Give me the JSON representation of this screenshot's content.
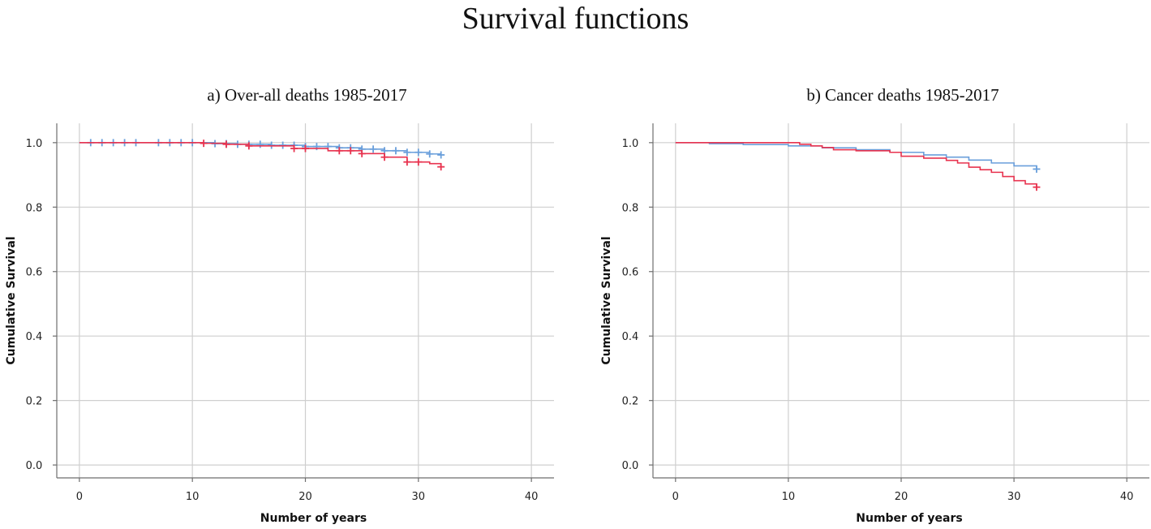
{
  "figure_title": "Survival functions",
  "colors": {
    "series_1": "#6a9fdb",
    "series_2": "#e8334f",
    "grid": "#cfcfcf"
  },
  "chart_data": [
    {
      "type": "line",
      "subtype": "kaplan-meier step",
      "title": "a) Over-all deaths 1985-2017",
      "xlabel": "Number of years",
      "ylabel": "Cumulative Survival",
      "xlim": [
        -2,
        42
      ],
      "ylim": [
        -0.04,
        1.06
      ],
      "xticks": [
        0,
        10,
        20,
        30,
        40
      ],
      "yticks": [
        0.0,
        0.2,
        0.4,
        0.6,
        0.8,
        1.0
      ],
      "grid": true,
      "series": [
        {
          "color": "#6a9fdb",
          "points": [
            [
              0,
              1.0
            ],
            [
              10,
              1.0
            ],
            [
              12,
              0.997
            ],
            [
              14,
              0.995
            ],
            [
              17,
              0.992
            ],
            [
              20,
              0.988
            ],
            [
              23,
              0.984
            ],
            [
              25,
              0.98
            ],
            [
              27,
              0.975
            ],
            [
              29,
              0.97
            ],
            [
              31,
              0.965
            ],
            [
              32,
              0.962
            ]
          ],
          "censored": [
            1,
            2,
            3,
            4,
            5,
            7,
            8,
            9,
            10,
            12,
            13,
            14,
            15,
            16,
            17,
            18,
            19,
            20,
            21,
            22,
            23,
            24,
            25,
            26,
            27,
            28,
            29,
            30,
            31,
            32
          ]
        },
        {
          "color": "#e8334f",
          "points": [
            [
              0,
              1.0
            ],
            [
              11,
              0.998
            ],
            [
              13,
              0.995
            ],
            [
              15,
              0.99
            ],
            [
              19,
              0.982
            ],
            [
              22,
              0.975
            ],
            [
              25,
              0.966
            ],
            [
              27,
              0.955
            ],
            [
              29,
              0.94
            ],
            [
              31,
              0.935
            ],
            [
              32,
              0.925
            ]
          ],
          "censored": [
            11,
            13,
            15,
            19,
            20,
            23,
            24,
            25,
            27,
            29,
            30,
            32
          ]
        }
      ]
    },
    {
      "type": "line",
      "subtype": "kaplan-meier step",
      "title": "b) Cancer deaths 1985-2017",
      "xlabel": "Number of years",
      "ylabel": "Cumulative Survival",
      "xlim": [
        -2,
        42
      ],
      "ylim": [
        -0.04,
        1.06
      ],
      "xticks": [
        0,
        10,
        20,
        30,
        40
      ],
      "yticks": [
        0.0,
        0.2,
        0.4,
        0.6,
        0.8,
        1.0
      ],
      "grid": true,
      "series": [
        {
          "color": "#6a9fdb",
          "points": [
            [
              0,
              1.0
            ],
            [
              3,
              0.997
            ],
            [
              6,
              0.994
            ],
            [
              10,
              0.99
            ],
            [
              13,
              0.984
            ],
            [
              16,
              0.978
            ],
            [
              19,
              0.97
            ],
            [
              22,
              0.962
            ],
            [
              24,
              0.955
            ],
            [
              26,
              0.946
            ],
            [
              28,
              0.937
            ],
            [
              30,
              0.928
            ],
            [
              32,
              0.918
            ]
          ],
          "censored": [
            32
          ]
        },
        {
          "color": "#e8334f",
          "points": [
            [
              0,
              1.0
            ],
            [
              10,
              1.0
            ],
            [
              11,
              0.995
            ],
            [
              12,
              0.99
            ],
            [
              13,
              0.985
            ],
            [
              14,
              0.978
            ],
            [
              16,
              0.975
            ],
            [
              19,
              0.97
            ],
            [
              20,
              0.958
            ],
            [
              22,
              0.952
            ],
            [
              24,
              0.945
            ],
            [
              25,
              0.937
            ],
            [
              26,
              0.924
            ],
            [
              27,
              0.916
            ],
            [
              28,
              0.908
            ],
            [
              29,
              0.895
            ],
            [
              30,
              0.882
            ],
            [
              31,
              0.872
            ],
            [
              32,
              0.862
            ]
          ],
          "censored": [
            32
          ]
        }
      ]
    }
  ]
}
